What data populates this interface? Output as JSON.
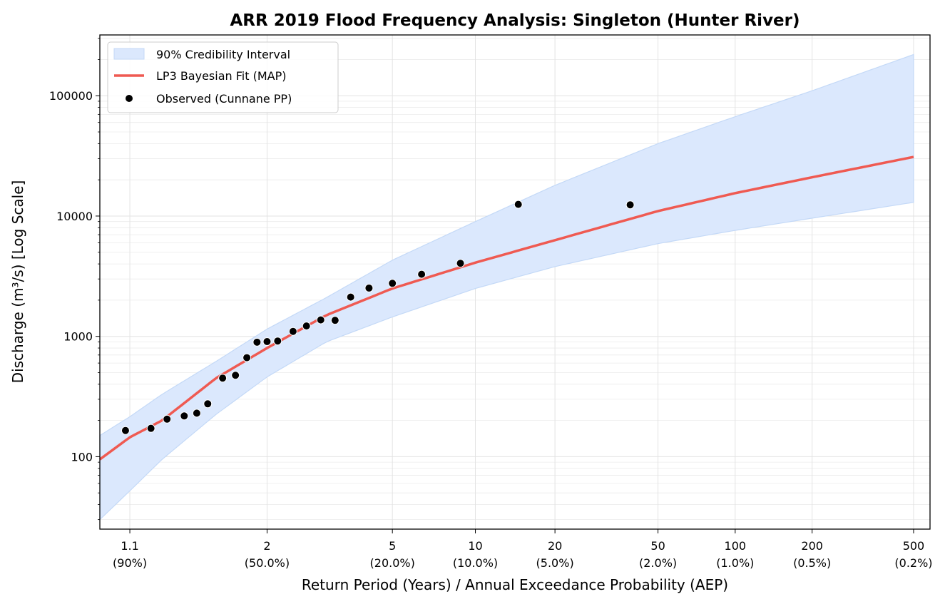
{
  "chart_data": {
    "type": "line",
    "title": "ARR 2019 Flood Frequency Analysis: Singleton (Hunter River)",
    "xlabel": "Return Period (Years) / Annual Exceedance Probability (AEP)",
    "ylabel": "Discharge (m³/s) [Log Scale]",
    "x_scale": "gumbel-probability",
    "y_scale": "log",
    "xlim": [
      1.045,
      580
    ],
    "ylim": [
      25,
      320000
    ],
    "grid": true,
    "legend_position": "top-left",
    "x_ticks": [
      {
        "value": 1.1,
        "label": "1.1",
        "sublabel": "(90%)"
      },
      {
        "value": 2,
        "label": "2",
        "sublabel": "(50.0%)"
      },
      {
        "value": 5,
        "label": "5",
        "sublabel": "(20.0%)"
      },
      {
        "value": 10,
        "label": "10",
        "sublabel": "(10.0%)"
      },
      {
        "value": 20,
        "label": "20",
        "sublabel": "(5.0%)"
      },
      {
        "value": 50,
        "label": "50",
        "sublabel": "(2.0%)"
      },
      {
        "value": 100,
        "label": "100",
        "sublabel": "(1.0%)"
      },
      {
        "value": 200,
        "label": "200",
        "sublabel": "(0.5%)"
      },
      {
        "value": 500,
        "label": "500",
        "sublabel": "(0.2%)"
      }
    ],
    "y_ticks": [
      {
        "value": 100,
        "label": "100"
      },
      {
        "value": 1000,
        "label": "1000"
      },
      {
        "value": 10000,
        "label": "10000"
      },
      {
        "value": 100000,
        "label": "100000"
      }
    ],
    "series": [
      {
        "name": "90% Credibility Interval",
        "kind": "band",
        "color": "#dbe8fd",
        "edge_color": "#c4d9f7",
        "x": [
          1.045,
          1.1,
          1.2,
          1.5,
          2,
          3,
          5,
          10,
          20,
          50,
          100,
          200,
          500
        ],
        "lower": [
          30,
          52,
          95,
          225,
          460,
          900,
          1450,
          2500,
          3800,
          5900,
          7600,
          9600,
          13000
        ],
        "upper": [
          150,
          215,
          330,
          620,
          1150,
          2100,
          4300,
          9000,
          18000,
          40000,
          67000,
          110000,
          220000
        ]
      },
      {
        "name": "LP3 Bayesian Fit (MAP)",
        "kind": "line",
        "color": "#ef5a52",
        "x": [
          1.045,
          1.1,
          1.2,
          1.5,
          2,
          3,
          5,
          10,
          20,
          50,
          100,
          200,
          500
        ],
        "y": [
          95,
          145,
          200,
          450,
          800,
          1500,
          2500,
          4100,
          6300,
          11000,
          15500,
          21000,
          31000
        ]
      },
      {
        "name": "Observed (Cunnane PP)",
        "kind": "scatter",
        "color": "#000000",
        "x": [
          1.09,
          1.16,
          1.22,
          1.3,
          1.37,
          1.44,
          1.55,
          1.66,
          1.77,
          1.88,
          2.0,
          2.14,
          2.37,
          2.6,
          2.88,
          3.2,
          3.6,
          4.15,
          5.0,
          6.35,
          8.8,
          14.5,
          39
        ],
        "y": [
          165,
          172,
          205,
          218,
          230,
          275,
          450,
          475,
          665,
          895,
          905,
          915,
          1100,
          1220,
          1370,
          1360,
          2120,
          2520,
          2760,
          3280,
          4050,
          12500,
          12400
        ]
      }
    ]
  }
}
